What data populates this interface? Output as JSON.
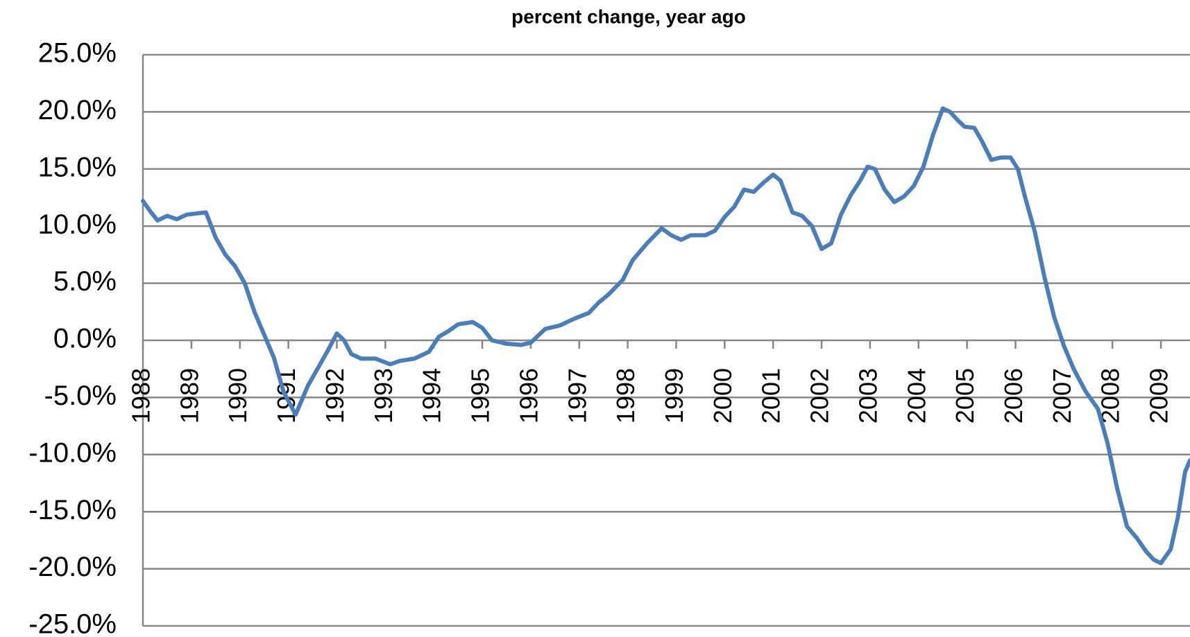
{
  "chart_data": {
    "type": "line",
    "title": "percent change, year ago",
    "x": [
      1988.0,
      1988.15,
      1988.3,
      1988.5,
      1988.7,
      1988.9,
      1989.3,
      1989.5,
      1989.7,
      1989.9,
      1990.1,
      1990.3,
      1990.5,
      1990.7,
      1990.9,
      1991.15,
      1991.4,
      1991.6,
      1991.8,
      1992.0,
      1992.15,
      1992.3,
      1992.5,
      1992.8,
      1993.1,
      1993.3,
      1993.6,
      1993.9,
      1994.1,
      1994.3,
      1994.5,
      1994.8,
      1995.0,
      1995.2,
      1995.5,
      1995.8,
      1996.0,
      1996.3,
      1996.6,
      1996.9,
      1997.2,
      1997.4,
      1997.6,
      1997.9,
      1998.1,
      1998.4,
      1998.7,
      1998.9,
      1999.1,
      1999.3,
      1999.6,
      1999.8,
      2000.0,
      2000.2,
      2000.4,
      2000.6,
      2000.8,
      2001.0,
      2001.15,
      2001.4,
      2001.6,
      2001.8,
      2002.0,
      2002.2,
      2002.4,
      2002.6,
      2002.8,
      2002.95,
      2003.1,
      2003.3,
      2003.5,
      2003.7,
      2003.9,
      2004.1,
      2004.3,
      2004.5,
      2004.65,
      2004.8,
      2004.95,
      2005.15,
      2005.3,
      2005.5,
      2005.7,
      2005.9,
      2006.05,
      2006.2,
      2006.4,
      2006.6,
      2006.8,
      2007.0,
      2007.2,
      2007.45,
      2007.7,
      2007.9,
      2008.1,
      2008.3,
      2008.5,
      2008.7,
      2008.85,
      2009.0,
      2009.2,
      2009.35,
      2009.5,
      2009.6
    ],
    "series": [
      {
        "color": "#4a7ebb",
        "values": [
          12.2,
          11.3,
          10.5,
          10.9,
          10.6,
          11.0,
          11.2,
          9.0,
          7.5,
          6.5,
          5.0,
          2.5,
          0.5,
          -1.5,
          -4.5,
          -6.5,
          -4.0,
          -2.5,
          -1.0,
          0.6,
          0.0,
          -1.2,
          -1.6,
          -1.6,
          -2.1,
          -1.8,
          -1.6,
          -1.0,
          0.3,
          0.8,
          1.4,
          1.6,
          1.1,
          0.0,
          -0.3,
          -0.4,
          -0.2,
          1.0,
          1.3,
          1.9,
          2.4,
          3.3,
          4.0,
          5.3,
          7.0,
          8.5,
          9.8,
          9.2,
          8.8,
          9.2,
          9.2,
          9.6,
          10.8,
          11.7,
          13.2,
          13.0,
          13.8,
          14.5,
          14.0,
          11.2,
          10.9,
          10.0,
          8.0,
          8.5,
          11.0,
          12.7,
          14.0,
          15.2,
          15.0,
          13.2,
          12.1,
          12.6,
          13.5,
          15.2,
          18.0,
          20.3,
          20.0,
          19.3,
          18.7,
          18.6,
          17.5,
          15.8,
          16.0,
          16.0,
          15.0,
          12.5,
          9.5,
          5.5,
          2.0,
          -0.5,
          -2.5,
          -4.5,
          -6.0,
          -9.0,
          -13.0,
          -16.3,
          -17.3,
          -18.5,
          -19.2,
          -19.5,
          -18.3,
          -15.5,
          -11.5,
          -10.5
        ]
      }
    ],
    "xlim": [
      1988,
      2009.6
    ],
    "xticks": [
      1988,
      1989,
      1990,
      1991,
      1992,
      1993,
      1994,
      1995,
      1996,
      1997,
      1998,
      1999,
      2000,
      2001,
      2002,
      2003,
      2004,
      2005,
      2006,
      2007,
      2008,
      2009
    ],
    "ylim": [
      -25,
      25
    ],
    "yticks": [
      {
        "value": -25,
        "label": "-25.0%"
      },
      {
        "value": -20,
        "label": "-20.0%"
      },
      {
        "value": -15,
        "label": "-15.0%"
      },
      {
        "value": -10,
        "label": "-10.0%"
      },
      {
        "value": -5,
        "label": "-5.0%"
      },
      {
        "value": 0,
        "label": "0.0%"
      },
      {
        "value": 5,
        "label": "5.0%"
      },
      {
        "value": 10,
        "label": "10.0%"
      },
      {
        "value": 15,
        "label": "15.0%"
      },
      {
        "value": 20,
        "label": "20.0%"
      },
      {
        "value": 25,
        "label": "25.0%"
      }
    ],
    "grid": true
  }
}
